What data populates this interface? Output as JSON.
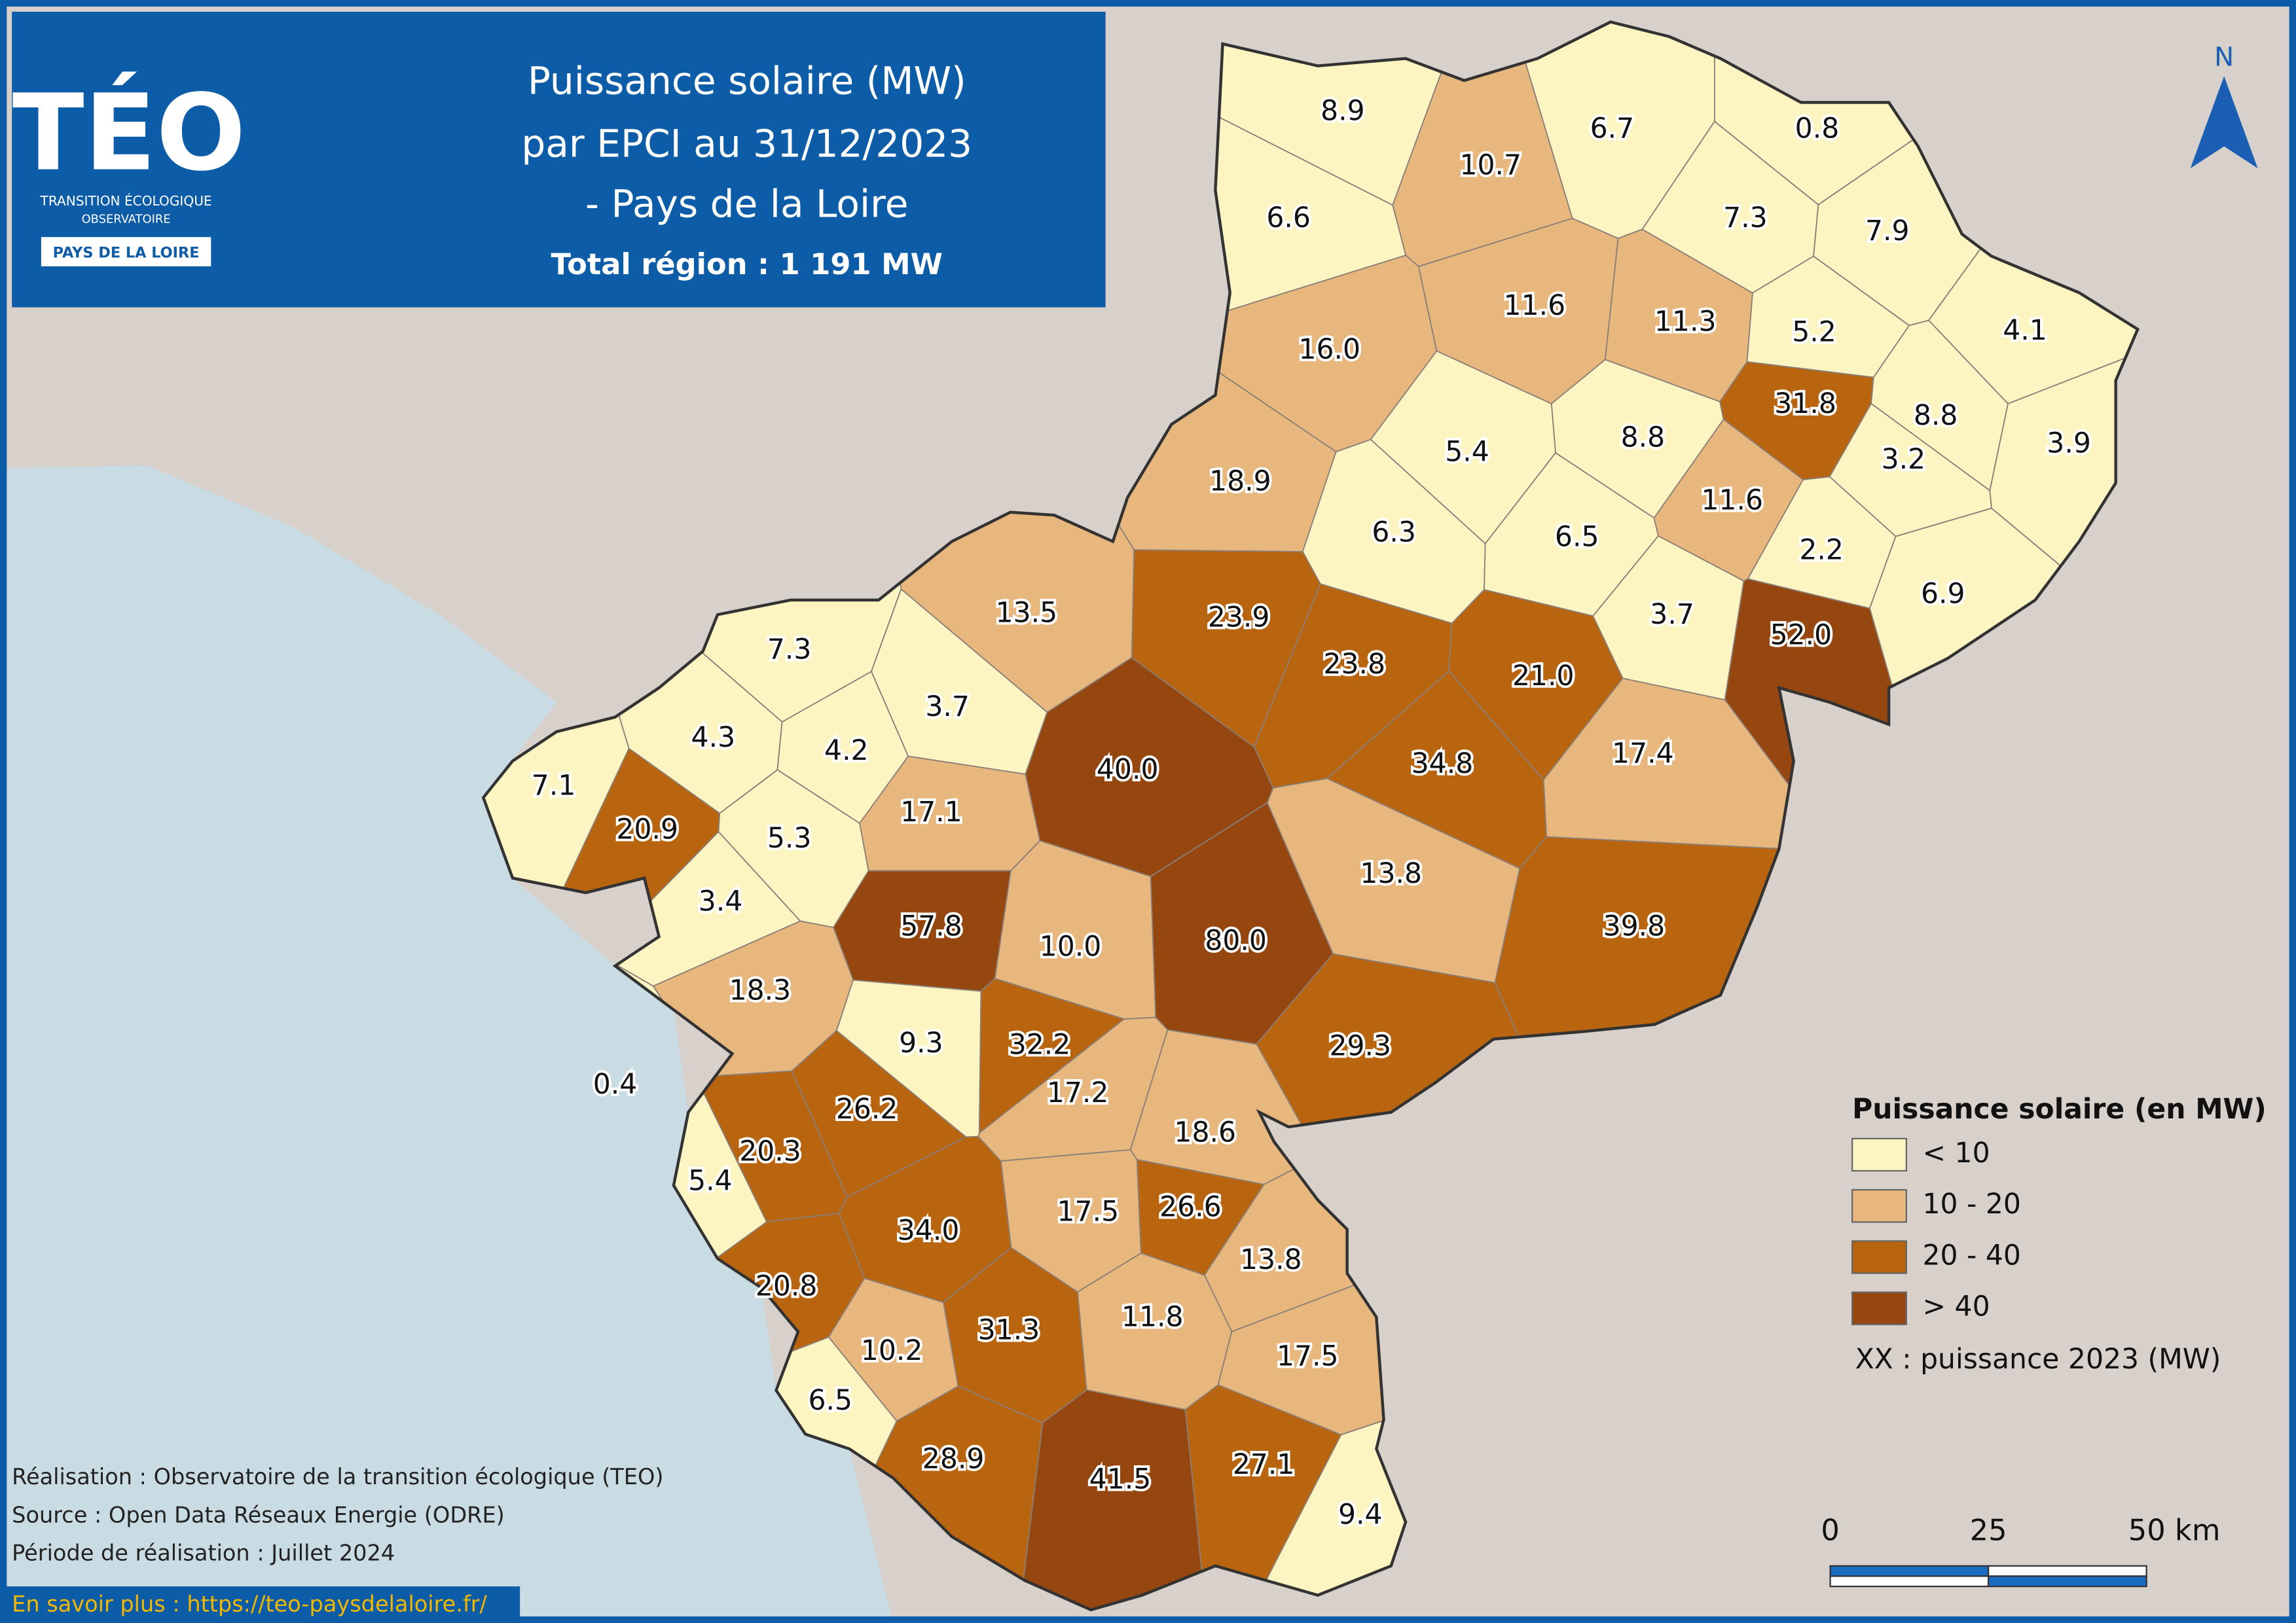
{
  "header": {
    "title_lines": [
      "Puissance solaire (MW)",
      "par EPCI au 31/12/2023",
      "- Pays de la Loire"
    ],
    "total": "Total région : 1 191 MW"
  },
  "logo": {
    "name": "TÉO",
    "subtitle_lines": [
      "TRANSITION ÉCOLOGIQUE",
      "OBSERVATOIRE"
    ],
    "region": "PAYS DE LA LOIRE"
  },
  "north": "N",
  "epci": [
    {
      "label": "8.9",
      "color": "#fdf5c1"
    },
    {
      "label": "10.7",
      "color": "#e8b77d"
    },
    {
      "label": "6.7",
      "color": "#fdf5c1"
    },
    {
      "label": "0.8",
      "color": "#fdf5c1"
    },
    {
      "label": "6.6",
      "color": "#fdf5c1"
    },
    {
      "label": "7.3",
      "color": "#fdf5c1"
    },
    {
      "label": "7.9",
      "color": "#fdf5c1"
    },
    {
      "label": "16.0",
      "color": "#e8b77d"
    },
    {
      "label": "11.6",
      "color": "#e8b77d"
    },
    {
      "label": "11.3",
      "color": "#e8b77d"
    },
    {
      "label": "5.2",
      "color": "#fdf5c1"
    },
    {
      "label": "4.1",
      "color": "#fdf5c1"
    },
    {
      "label": "31.8",
      "color": "#b9640f"
    },
    {
      "label": "8.8",
      "color": "#fdf5c1"
    },
    {
      "label": "8.8",
      "color": "#fdf5c1"
    },
    {
      "label": "5.4",
      "color": "#fdf5c1"
    },
    {
      "label": "3.2",
      "color": "#fdf5c1"
    },
    {
      "label": "3.9",
      "color": "#fdf5c1"
    },
    {
      "label": "18.9",
      "color": "#e8b77d"
    },
    {
      "label": "11.6",
      "color": "#e8b77d"
    },
    {
      "label": "6.3",
      "color": "#fdf5c1"
    },
    {
      "label": "6.5",
      "color": "#fdf5c1"
    },
    {
      "label": "2.2",
      "color": "#fdf5c1"
    },
    {
      "label": "6.9",
      "color": "#fdf5c1"
    },
    {
      "label": "13.5",
      "color": "#e8b77d"
    },
    {
      "label": "23.9",
      "color": "#b9640f"
    },
    {
      "label": "3.7",
      "color": "#fdf5c1"
    },
    {
      "label": "52.0",
      "color": "#96470f"
    },
    {
      "label": "7.3",
      "color": "#fdf5c1"
    },
    {
      "label": "23.8",
      "color": "#b9640f"
    },
    {
      "label": "21.0",
      "color": "#b9640f"
    },
    {
      "label": "3.7",
      "color": "#fdf5c1"
    },
    {
      "label": "4.3",
      "color": "#fdf5c1"
    },
    {
      "label": "4.2",
      "color": "#fdf5c1"
    },
    {
      "label": "17.4",
      "color": "#e8b77d"
    },
    {
      "label": "40.0",
      "color": "#96470f"
    },
    {
      "label": "34.8",
      "color": "#b9640f"
    },
    {
      "label": "7.1",
      "color": "#fdf5c1"
    },
    {
      "label": "17.1",
      "color": "#e8b77d"
    },
    {
      "label": "20.9",
      "color": "#b9640f"
    },
    {
      "label": "5.3",
      "color": "#fdf5c1"
    },
    {
      "label": "13.8",
      "color": "#e8b77d"
    },
    {
      "label": "3.4",
      "color": "#fdf5c1"
    },
    {
      "label": "57.8",
      "color": "#96470f"
    },
    {
      "label": "10.0",
      "color": "#e8b77d"
    },
    {
      "label": "80.0",
      "color": "#96470f"
    },
    {
      "label": "39.8",
      "color": "#b9640f"
    },
    {
      "label": "18.3",
      "color": "#e8b77d"
    },
    {
      "label": "9.3",
      "color": "#fdf5c1"
    },
    {
      "label": "32.2",
      "color": "#b9640f"
    },
    {
      "label": "29.3",
      "color": "#b9640f"
    },
    {
      "label": "0.4",
      "color": "#fdf5c1"
    },
    {
      "label": "17.2",
      "color": "#e8b77d"
    },
    {
      "label": "26.2",
      "color": "#b9640f"
    },
    {
      "label": "18.6",
      "color": "#e8b77d"
    },
    {
      "label": "20.3",
      "color": "#b9640f"
    },
    {
      "label": "5.4",
      "color": "#fdf5c1"
    },
    {
      "label": "17.5",
      "color": "#e8b77d"
    },
    {
      "label": "26.6",
      "color": "#b9640f"
    },
    {
      "label": "34.0",
      "color": "#b9640f"
    },
    {
      "label": "13.8",
      "color": "#e8b77d"
    },
    {
      "label": "20.8",
      "color": "#b9640f"
    },
    {
      "label": "31.3",
      "color": "#b9640f"
    },
    {
      "label": "11.8",
      "color": "#e8b77d"
    },
    {
      "label": "10.2",
      "color": "#e8b77d"
    },
    {
      "label": "17.5",
      "color": "#e8b77d"
    },
    {
      "label": "6.5",
      "color": "#fdf5c1"
    },
    {
      "label": "28.9",
      "color": "#b9640f"
    },
    {
      "label": "41.5",
      "color": "#96470f"
    },
    {
      "label": "27.1",
      "color": "#b9640f"
    },
    {
      "label": "9.4",
      "color": "#fdf5c1"
    }
  ],
  "legend": {
    "title": "Puissance solaire (en MW)",
    "classes": [
      {
        "label": "< 10",
        "color": "#fdf5c1"
      },
      {
        "label": "10 - 20",
        "color": "#e8b77d"
      },
      {
        "label": "20 - 40",
        "color": "#b9640f"
      },
      {
        "label": "> 40",
        "color": "#96470f"
      }
    ],
    "note": "XX : puissance 2023 (MW)"
  },
  "scale_bar": {
    "labels": [
      "0",
      "25",
      "50 km"
    ]
  },
  "credits": [
    "Réalisation : Observatoire de la transition écologique (TEO)",
    "Source : Open Data Réseaux Energie (ODRE)",
    "Période de réalisation : Juillet 2024"
  ],
  "link": "En savoir plus : https://teo-paysdelaloire.fr/"
}
